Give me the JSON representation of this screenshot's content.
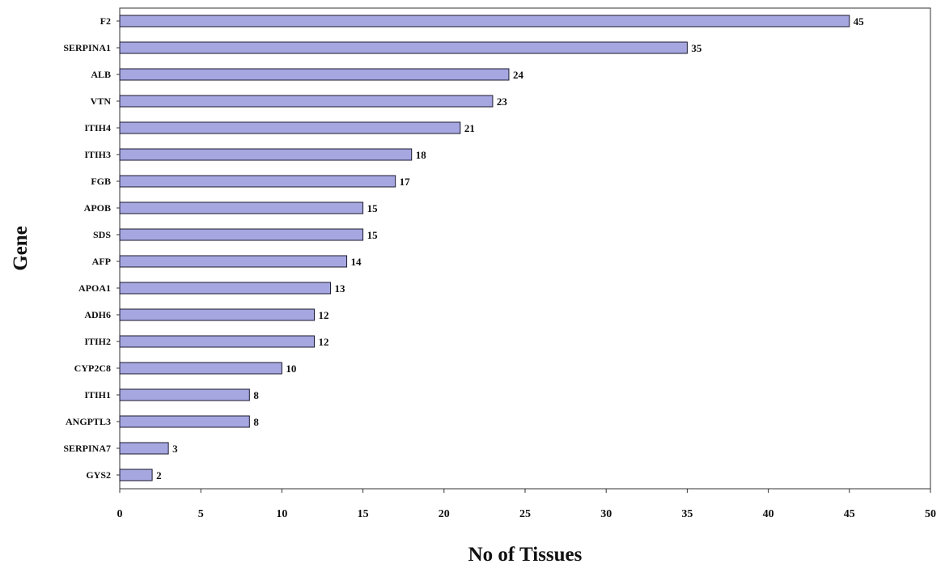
{
  "chart_data": {
    "type": "bar",
    "orientation": "horizontal",
    "categories": [
      "F2",
      "SERPINA1",
      "ALB",
      "VTN",
      "ITIH4",
      "ITIH3",
      "FGB",
      "APOB",
      "SDS",
      "AFP",
      "APOA1",
      "ADH6",
      "ITIH2",
      "CYP2C8",
      "ITIH1",
      "ANGPTL3",
      "SERPINA7",
      "GYS2"
    ],
    "values": [
      45,
      35,
      24,
      23,
      21,
      18,
      17,
      15,
      15,
      14,
      13,
      12,
      12,
      10,
      8,
      8,
      3,
      2
    ],
    "xlabel": "No of Tissues",
    "ylabel": "Gene",
    "xlim": [
      0,
      50
    ],
    "x_ticks": [
      0,
      5,
      10,
      15,
      20,
      25,
      30,
      35,
      40,
      45,
      50
    ],
    "grid": false,
    "legend": "none",
    "bar_color": "#a6a6e0",
    "bar_edge_color": "#1a1a2e"
  }
}
